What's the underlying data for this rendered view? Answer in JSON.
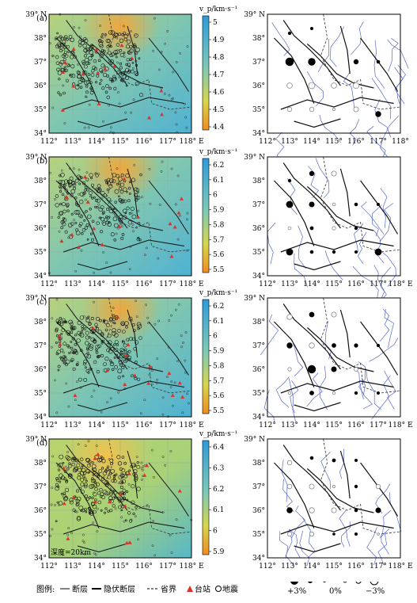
{
  "panels": [
    {
      "id": "a",
      "label": "(a)",
      "cbar_title": "v_p/km·s⁻¹",
      "cbar_ticks": [
        "5",
        "4.9",
        "4.8",
        "4.7",
        "4.6",
        "4.5",
        "4.4"
      ],
      "depth_note": ""
    },
    {
      "id": "b",
      "label": "(b)",
      "cbar_title": "v_p/km·s⁻¹",
      "cbar_ticks": [
        "6.2",
        "6.1",
        "6",
        "5.9",
        "5.8",
        "5.7",
        "5.6",
        "5.5"
      ],
      "depth_note": ""
    },
    {
      "id": "c",
      "label": "(c)",
      "cbar_title": "v_p/km·s⁻¹",
      "cbar_ticks": [
        "6.2",
        "6.1",
        "6",
        "5.9",
        "5.8",
        "5.7",
        "5.6",
        "5.5"
      ],
      "depth_note": ""
    },
    {
      "id": "d",
      "label": "(d)",
      "cbar_title": "v_p/km·s⁻¹",
      "cbar_ticks": [
        "6.4",
        "6.3",
        "6.2",
        "6.1",
        "6",
        "5.9"
      ],
      "depth_note": "深度=20km"
    }
  ],
  "axes": {
    "lon_ticks": [
      "112°",
      "113°",
      "114°",
      "115°",
      "116°",
      "117°",
      "118° E"
    ],
    "lon_ticks_right": [
      "112°",
      "113°",
      "114°",
      "115°",
      "116°",
      "117°",
      "118°"
    ],
    "lat_ticks": [
      "39° N",
      "38°",
      "37°",
      "36°",
      "35°",
      "34°"
    ]
  },
  "legend": {
    "prefix": "图例:",
    "fault": "断层",
    "hidden_fault": "隐伏断层",
    "province": "省界",
    "station": "台站",
    "quake": "地震"
  },
  "scale": {
    "plus": "+3%",
    "zero": "0%",
    "minus": "−3%"
  },
  "chart_data": {
    "type": "map",
    "x_range": [
      112,
      118
    ],
    "y_range": [
      34,
      39
    ],
    "perturbation_points": [
      [
        [
          113,
          38.2,
          0.5
        ],
        [
          113,
          37,
          2.6
        ],
        [
          114,
          37,
          2.2
        ],
        [
          114,
          38.4,
          0.4
        ],
        [
          116,
          37,
          1.2
        ],
        [
          117,
          37,
          0.6
        ],
        [
          113,
          36,
          -1.6
        ],
        [
          114,
          36,
          -2
        ],
        [
          115,
          36,
          -1.6
        ],
        [
          116,
          36,
          -1.8
        ],
        [
          113,
          35,
          -1.2
        ],
        [
          114,
          35,
          -1.2
        ],
        [
          115,
          35,
          -0.4
        ],
        [
          116,
          35,
          -1.4
        ],
        [
          117,
          34.8,
          1.5
        ]
      ],
      [
        [
          113,
          38,
          0.5
        ],
        [
          114,
          38.3,
          1.2
        ],
        [
          115,
          38.3,
          -1.4
        ],
        [
          113,
          37,
          2
        ],
        [
          114,
          37,
          1.4
        ],
        [
          115,
          37,
          -0.6
        ],
        [
          116,
          37,
          0.6
        ],
        [
          117,
          37,
          0.4
        ],
        [
          113,
          36,
          -0.6
        ],
        [
          114,
          36,
          0.7
        ],
        [
          115,
          36,
          -0.8
        ],
        [
          116,
          36,
          0.5
        ],
        [
          113,
          35,
          2
        ],
        [
          114,
          35,
          0.6
        ],
        [
          115,
          35,
          0.5
        ],
        [
          116,
          35,
          0.4
        ],
        [
          117,
          35,
          2
        ]
      ],
      [
        [
          113,
          38.2,
          -1.5
        ],
        [
          114,
          38.3,
          1.3
        ],
        [
          115,
          38.3,
          -1.4
        ],
        [
          113,
          37,
          1.5
        ],
        [
          114,
          37,
          -1.5
        ],
        [
          115,
          37,
          1
        ],
        [
          116,
          37,
          0.8
        ],
        [
          117,
          37,
          0.4
        ],
        [
          113,
          36,
          -0.8
        ],
        [
          114,
          36,
          2.5
        ],
        [
          115,
          36,
          1.4
        ],
        [
          116,
          36,
          -1
        ],
        [
          113,
          35,
          -0.5
        ],
        [
          114,
          35,
          1
        ],
        [
          115,
          35,
          -0.5
        ],
        [
          116,
          35,
          0.5
        ],
        [
          117,
          35,
          0.4
        ]
      ],
      [
        [
          113,
          38,
          -1.2
        ],
        [
          114,
          38.2,
          0.6
        ],
        [
          115,
          38.1,
          0.7
        ],
        [
          116,
          38.1,
          0.4
        ],
        [
          113,
          37,
          -1.2
        ],
        [
          114,
          37,
          -1.4
        ],
        [
          115,
          37,
          -0.4
        ],
        [
          116,
          37,
          0.5
        ],
        [
          117,
          37,
          -1.1
        ],
        [
          113,
          36,
          1.6
        ],
        [
          114,
          36,
          -1.5
        ],
        [
          115,
          36,
          -1.4
        ],
        [
          116,
          36,
          0.6
        ],
        [
          117,
          36,
          1.4
        ],
        [
          113,
          35,
          -1.1
        ],
        [
          114,
          35,
          -1.1
        ],
        [
          115,
          35,
          0.3
        ],
        [
          116,
          35,
          0.4
        ],
        [
          117,
          35,
          -0.3
        ]
      ]
    ]
  }
}
